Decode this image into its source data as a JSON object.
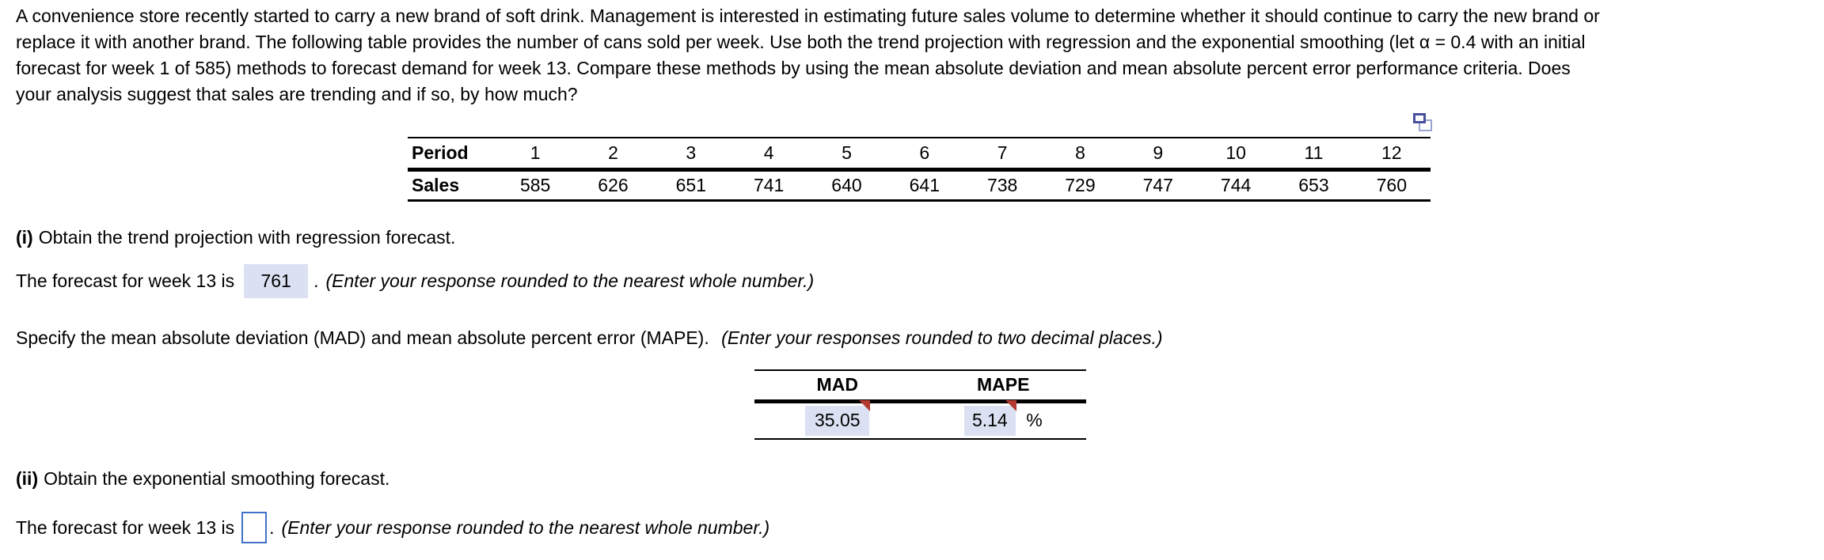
{
  "question": {
    "lines": [
      "A convenience store recently started to carry a new brand of soft drink. Management is interested in estimating future sales volume to determine whether it should continue to carry the new brand or",
      "replace it with another brand. The following table provides the number of cans sold per week. Use both the trend projection with regression and the exponential smoothing (let α = 0.4 with an initial",
      "forecast for week 1 of 585) methods to forecast demand for week 13. Compare these methods by using the mean absolute deviation and mean absolute percent error performance criteria. Does",
      "your analysis suggest that sales are trending and if so, by how much?"
    ]
  },
  "sales_table": {
    "row1_header": "Period",
    "row2_header": "Sales",
    "periods": [
      "1",
      "2",
      "3",
      "4",
      "5",
      "6",
      "7",
      "8",
      "9",
      "10",
      "11",
      "12"
    ],
    "sales": [
      "585",
      "626",
      "651",
      "741",
      "640",
      "641",
      "738",
      "729",
      "747",
      "744",
      "653",
      "760"
    ]
  },
  "icons": {
    "table_popup": "popup-table-icon",
    "answered_flag": "answered-flag-triangle"
  },
  "part_i": {
    "label": "(i)",
    "title": "Obtain the trend projection with regression forecast.",
    "forecast_prefix": "The forecast for week 13 is",
    "forecast_value": "761",
    "period_after_value": ".",
    "note": "(Enter your response rounded to the nearest whole number.)",
    "specify_text": "Specify the mean absolute deviation (MAD) and mean absolute percent error (MAPE).",
    "specify_note": "(Enter your responses rounded to two decimal places.)",
    "results": {
      "mad_header": "MAD",
      "mape_header": "MAPE",
      "mad_value": "35.05",
      "mape_value": "5.14",
      "percent_sign": "%"
    }
  },
  "part_ii": {
    "label": "(ii)",
    "title": "Obtain the exponential smoothing forecast.",
    "forecast_prefix": "The forecast for week 13 is",
    "input_value": "",
    "period_after_value": ".",
    "note": "(Enter your response rounded to the nearest whole number.)"
  },
  "colors": {
    "answer_highlight": "#dbe1f2",
    "flag_red": "#b23a2e",
    "active_input_border": "#4371c9",
    "popup_icon_dark": "#474f9b",
    "popup_icon_light": "#9aa4d2"
  }
}
